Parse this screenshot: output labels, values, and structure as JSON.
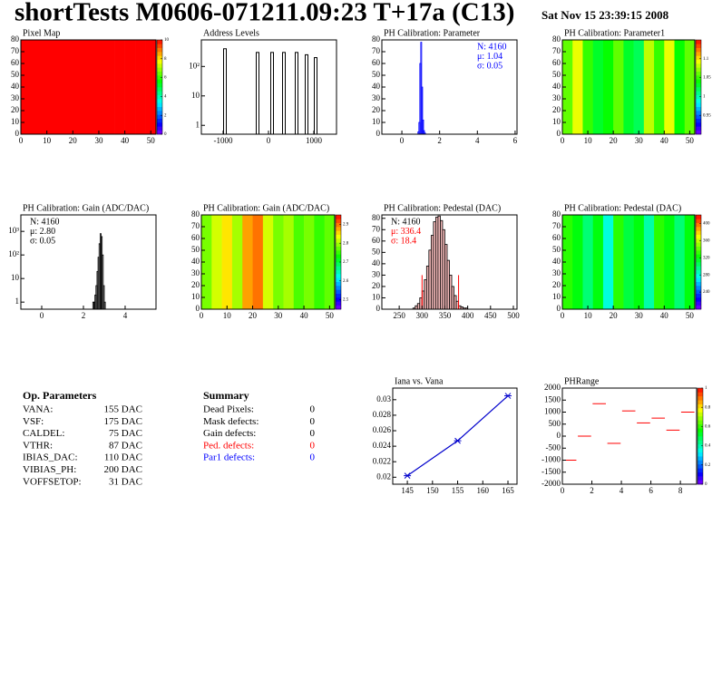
{
  "header": {
    "title": "shortTests M0606-071211.09:23 T+17a (C13)",
    "date": "Sat Nov 15 23:39:15 2008"
  },
  "chart_data": [
    {
      "type": "heatmap",
      "title": "Pixel Map",
      "xlim": [
        0,
        52
      ],
      "ylim": [
        0,
        80
      ],
      "xticks": [
        0,
        10,
        20,
        30,
        40,
        50
      ],
      "yticks": [
        0,
        10,
        20,
        30,
        40,
        50,
        60,
        70,
        80
      ],
      "columns": [
        10,
        10,
        10,
        10,
        10,
        10,
        10,
        10,
        10,
        10,
        10,
        10,
        10
      ],
      "zlim": [
        0,
        10
      ],
      "zticks": [
        0,
        2,
        4,
        6,
        8,
        10
      ]
    },
    {
      "type": "spike",
      "title": "Address Levels",
      "log_y": true,
      "xlim": [
        -1480,
        1500
      ],
      "ylim": [
        0.5,
        800
      ],
      "xticks": [
        -1000,
        0,
        1000
      ],
      "yticks": [
        1,
        10,
        {
          "value": 100,
          "label": "10²"
        }
      ],
      "x": [
        -960,
        -240,
        80,
        340,
        620,
        840,
        1040
      ],
      "values": [
        400,
        300,
        300,
        300,
        300,
        250,
        200
      ],
      "color": "#000000"
    },
    {
      "type": "histogram",
      "title": "PH Calibration: Parameter",
      "xlim": [
        -1.06,
        6.1
      ],
      "ylim": [
        0,
        80
      ],
      "xticks": [
        0,
        2,
        4,
        6
      ],
      "yticks": [
        0,
        10,
        20,
        30,
        40,
        50,
        60,
        70,
        80
      ],
      "bins": [
        0.85,
        0.9,
        0.95,
        1.0,
        1.05,
        1.1,
        1.15,
        1.2,
        1.25
      ],
      "counts": [
        2,
        10,
        60,
        78,
        40,
        12,
        3,
        1
      ],
      "color": "#0000ff",
      "stats": [
        "N: 4160",
        "μ: 1.04",
        "σ: 0.05"
      ],
      "stats_colors": [
        "#0000ff",
        "#0000ff",
        "#0000ff"
      ],
      "stats_corner": "right"
    },
    {
      "type": "heatmap",
      "title": "PH Calibration: Parameter1",
      "xlim": [
        0,
        52
      ],
      "ylim": [
        0,
        80
      ],
      "xticks": [
        0,
        10,
        20,
        30,
        40,
        50
      ],
      "yticks": [
        0,
        10,
        20,
        30,
        40,
        50,
        60,
        70,
        80
      ],
      "columns": [
        1.06,
        1.09,
        1.05,
        1.03,
        1.04,
        1.06,
        1.03,
        1.02,
        1.08,
        1.05,
        1.09,
        1.04,
        1.06
      ],
      "zlim": [
        0.9,
        1.15
      ],
      "zticks": [
        0.95,
        1,
        1.05,
        1.1
      ]
    },
    {
      "type": "histogram",
      "title": "PH Calibration: Gain (ADC/DAC)",
      "log_y": true,
      "xlim": [
        -1,
        5.48
      ],
      "ylim": [
        0.5,
        5000
      ],
      "xticks": [
        0,
        2,
        4
      ],
      "yticks": [
        1,
        10,
        {
          "value": 100,
          "label": "10²"
        },
        {
          "value": 1000,
          "label": "10³"
        }
      ],
      "bins": [
        2.45,
        2.5,
        2.55,
        2.6,
        2.65,
        2.7,
        2.75,
        2.8,
        2.85,
        2.9,
        2.95,
        3.0,
        3.05
      ],
      "counts": [
        1,
        1,
        2,
        5,
        20,
        80,
        300,
        800,
        600,
        100,
        5,
        1
      ],
      "color": "#000000",
      "stats": [
        "N: 4160",
        "μ: 2.80",
        "σ: 0.05"
      ],
      "stats_colors": [
        "#000000",
        "#000000",
        "#000000"
      ],
      "stats_corner": "left"
    },
    {
      "type": "heatmap",
      "title": "PH Calibration: Gain (ADC/DAC)",
      "xlim": [
        0,
        52
      ],
      "ylim": [
        0,
        80
      ],
      "xticks": [
        0,
        10,
        20,
        30,
        40,
        50
      ],
      "yticks": [
        0,
        10,
        20,
        30,
        40,
        50,
        60,
        70,
        80
      ],
      "columns": [
        2.78,
        2.82,
        2.85,
        2.8,
        2.88,
        2.9,
        2.82,
        2.78,
        2.8,
        2.76,
        2.78,
        2.75,
        2.77
      ],
      "zlim": [
        2.45,
        2.95
      ],
      "zticks": [
        2.5,
        2.6,
        2.7,
        2.8,
        2.9
      ]
    },
    {
      "type": "histogram",
      "title": "PH Calibration: Pedestal (DAC)",
      "xlim": [
        212,
        508
      ],
      "ylim": [
        0,
        83
      ],
      "xticks": [
        250,
        300,
        350,
        400,
        450,
        500
      ],
      "yticks": [
        0,
        10,
        20,
        30,
        40,
        50,
        60,
        70,
        80
      ],
      "bins": [
        280,
        285,
        290,
        295,
        300,
        305,
        310,
        315,
        320,
        325,
        330,
        335,
        340,
        345,
        350,
        355,
        360,
        365,
        370,
        375,
        380,
        385,
        390,
        395,
        400
      ],
      "counts": [
        1,
        3,
        5,
        10,
        16,
        26,
        38,
        52,
        65,
        77,
        81,
        82,
        78,
        70,
        57,
        43,
        30,
        20,
        12,
        7,
        3,
        2,
        1,
        1
      ],
      "color": "#f2b8b8",
      "cuts": [
        300,
        380
      ],
      "cut_height": 30,
      "cut_color": "#ff0000",
      "stats": [
        "N: 4160",
        "μ: 336.4",
        "σ: 18.4"
      ],
      "stats_colors": [
        "#000000",
        "#ff0000",
        "#ff0000"
      ],
      "stats_corner": "left"
    },
    {
      "type": "heatmap",
      "title": "PH Calibration: Pedestal (DAC)",
      "xlim": [
        0,
        52
      ],
      "ylim": [
        0,
        80
      ],
      "xticks": [
        0,
        10,
        20,
        30,
        40,
        50
      ],
      "yticks": [
        0,
        10,
        20,
        30,
        40,
        50,
        60,
        70,
        80
      ],
      "columns": [
        330,
        320,
        300,
        320,
        280,
        330,
        310,
        320,
        290,
        330,
        320,
        300,
        320
      ],
      "zlim": [
        200,
        420
      ],
      "zticks": [
        240,
        280,
        320,
        360,
        400
      ]
    },
    {
      "type": "line",
      "title": "Iana vs. Vana",
      "xlim": [
        142.1,
        166.8
      ],
      "ylim": [
        0.0191,
        0.0315
      ],
      "xticks": [
        145,
        150,
        155,
        160,
        165
      ],
      "yticks": [
        0.02,
        0.022,
        0.024,
        0.026,
        0.028,
        0.03
      ],
      "x": [
        145,
        155,
        165
      ],
      "values": [
        0.0202,
        0.0247,
        0.0305
      ],
      "color": "#0000cc"
    },
    {
      "type": "marker",
      "title": "PHRange",
      "xlim": [
        0,
        9.1
      ],
      "ylim": [
        -2000,
        2000
      ],
      "xticks": [
        0,
        2,
        4,
        6,
        8
      ],
      "yticks": [
        -2000,
        -1500,
        -1000,
        -500,
        0,
        500,
        1000,
        1500,
        2000
      ],
      "x": [
        0.5,
        1.5,
        2.5,
        3.5,
        4.5,
        5.5,
        6.5,
        7.5,
        8.5
      ],
      "values": [
        -1000,
        0,
        1350,
        -300,
        1050,
        550,
        750,
        250,
        1000
      ],
      "color": "#ff0000",
      "zlim": [
        0,
        1
      ],
      "zticks": [
        0,
        0.2,
        0.4,
        0.6,
        0.8,
        1
      ]
    }
  ],
  "op_parameters": {
    "title": "Op. Parameters",
    "rows": [
      [
        "VANA:",
        "155 DAC"
      ],
      [
        "VSF:",
        "175 DAC"
      ],
      [
        "CALDEL:",
        "75 DAC"
      ],
      [
        "VTHR:",
        "87 DAC"
      ],
      [
        "IBIAS_DAC:",
        "110 DAC"
      ],
      [
        "VIBIAS_PH:",
        "200 DAC"
      ],
      [
        "VOFFSETOP:",
        "31 DAC"
      ]
    ]
  },
  "summary": {
    "title": "Summary",
    "rows": [
      [
        "Dead Pixels:",
        "0"
      ],
      [
        "Mask defects:",
        "0"
      ],
      [
        "Gain defects:",
        "0"
      ],
      [
        "Ped. defects:",
        "0"
      ],
      [
        "Par1 defects:",
        "0"
      ]
    ],
    "colors": [
      "#000000",
      "#000000",
      "#000000",
      "#ff0000",
      "#0000ff"
    ]
  }
}
